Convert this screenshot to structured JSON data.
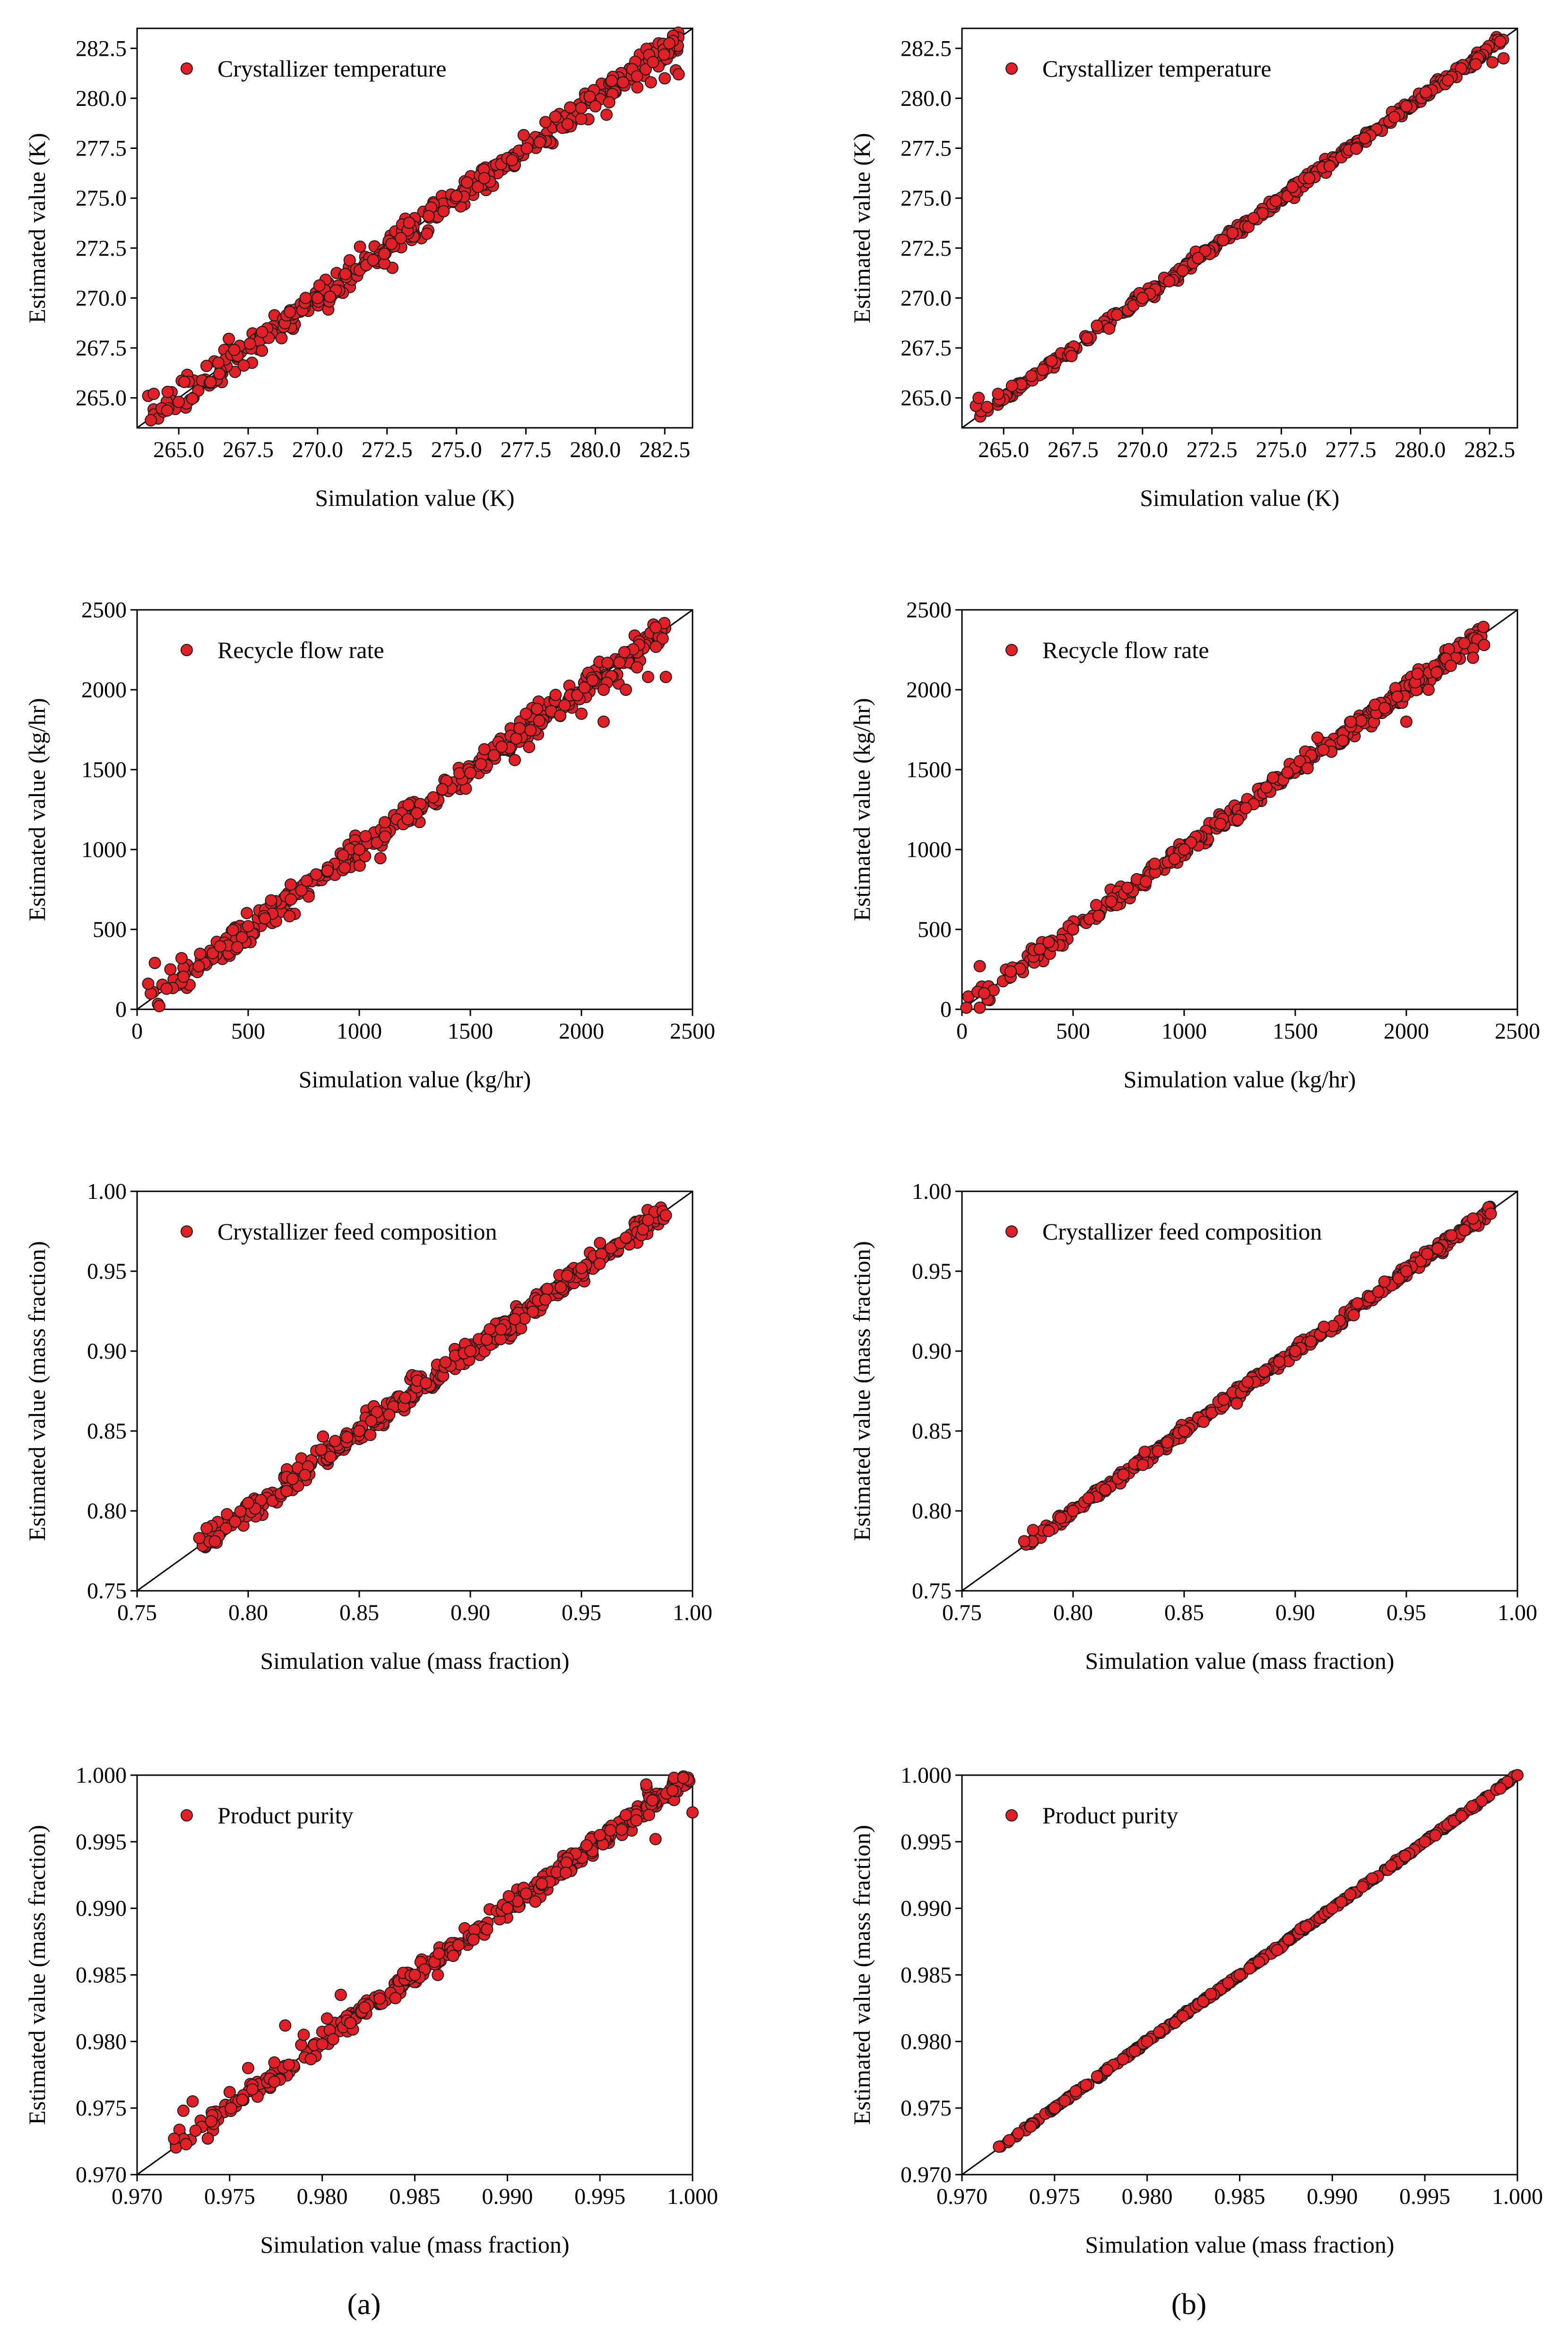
{
  "figure_labels": {
    "left": "(a)",
    "right": "(b)"
  },
  "colors": {
    "marker_fill": "#e21f26",
    "marker_edge": "#1a1a1a",
    "axis": "#000000"
  },
  "chart_data": [
    {
      "type": "scatter",
      "id": "a1",
      "legend": "Crystallizer temperature",
      "xlabel": "Simulation value (K)",
      "ylabel": "Estimated value (K)",
      "xlim": [
        263.5,
        283.5
      ],
      "ylim": [
        263.5,
        283.5
      ],
      "xticks": [
        "265.0",
        "267.5",
        "270.0",
        "272.5",
        "275.0",
        "277.5",
        "280.0",
        "282.5"
      ],
      "yticks": [
        "265.0",
        "267.5",
        "270.0",
        "272.5",
        "275.0",
        "277.5",
        "280.0",
        "282.5"
      ],
      "diagonal": true,
      "noise": 0.35,
      "points": [
        [
          263.9,
          265.1
        ],
        [
          264.1,
          265.2
        ],
        [
          264.6,
          265.3
        ],
        [
          265.0,
          264.8
        ],
        [
          265.2,
          265.8
        ],
        [
          266.0,
          266.6
        ],
        [
          267.0,
          267.4
        ],
        [
          268.0,
          268.3
        ],
        [
          269.0,
          269.3
        ],
        [
          270.0,
          270.0
        ],
        [
          271.0,
          271.2
        ],
        [
          272.0,
          271.9
        ],
        [
          273.0,
          273.0
        ],
        [
          274.0,
          274.1
        ],
        [
          275.0,
          275.1
        ],
        [
          276.0,
          276.0
        ],
        [
          277.0,
          276.9
        ],
        [
          278.0,
          277.8
        ],
        [
          279.0,
          278.7
        ],
        [
          280.0,
          279.6
        ],
        [
          280.5,
          279.8
        ],
        [
          281.0,
          280.8
        ],
        [
          281.5,
          281.1
        ],
        [
          282.0,
          280.8
        ],
        [
          282.5,
          281.0
        ],
        [
          282.9,
          281.4
        ],
        [
          283.0,
          281.2
        ]
      ]
    },
    {
      "type": "scatter",
      "id": "b1",
      "legend": "Crystallizer temperature",
      "xlabel": "Simulation value (K)",
      "ylabel": "Estimated value (K)",
      "xlim": [
        263.5,
        283.5
      ],
      "ylim": [
        263.5,
        283.5
      ],
      "xticks": [
        "265.0",
        "267.5",
        "270.0",
        "272.5",
        "275.0",
        "277.5",
        "280.0",
        "282.5"
      ],
      "yticks": [
        "265.0",
        "267.5",
        "270.0",
        "272.5",
        "275.0",
        "277.5",
        "280.0",
        "282.5"
      ],
      "diagonal": true,
      "noise": 0.15,
      "points": [
        [
          264.0,
          264.6
        ],
        [
          264.1,
          265.0
        ],
        [
          264.8,
          265.2
        ],
        [
          265.3,
          265.6
        ],
        [
          266.0,
          266.1
        ],
        [
          268.0,
          268.0
        ],
        [
          270.0,
          270.0
        ],
        [
          272.0,
          272.0
        ],
        [
          274.0,
          274.0
        ],
        [
          276.0,
          276.0
        ],
        [
          278.0,
          278.0
        ],
        [
          279.5,
          279.6
        ],
        [
          280.2,
          280.3
        ],
        [
          281.0,
          280.9
        ],
        [
          282.0,
          281.7
        ],
        [
          282.6,
          281.8
        ],
        [
          283.0,
          282.0
        ]
      ]
    },
    {
      "type": "scatter",
      "id": "a2",
      "legend": "Recycle flow rate",
      "xlabel": "Simulation value (kg/hr)",
      "ylabel": "Estimated value (kg/hr)",
      "xlim": [
        0,
        2500
      ],
      "ylim": [
        0,
        2500
      ],
      "xticks": [
        "0",
        "500",
        "1000",
        "1500",
        "2000",
        "2500"
      ],
      "yticks": [
        "0",
        "500",
        "1000",
        "1500",
        "2000",
        "2500"
      ],
      "diagonal": true,
      "noise": 45,
      "points": [
        [
          50,
          160
        ],
        [
          80,
          290
        ],
        [
          100,
          20
        ],
        [
          150,
          250
        ],
        [
          200,
          320
        ],
        [
          500,
          520
        ],
        [
          1000,
          1000
        ],
        [
          1500,
          1480
        ],
        [
          1700,
          1560
        ],
        [
          1750,
          1850
        ],
        [
          1800,
          1880
        ],
        [
          2000,
          1850
        ],
        [
          2050,
          2060
        ],
        [
          2100,
          1800
        ],
        [
          2100,
          2000
        ],
        [
          2200,
          2000
        ],
        [
          2250,
          2140
        ],
        [
          2300,
          2080
        ],
        [
          2380,
          2080
        ]
      ]
    },
    {
      "type": "scatter",
      "id": "b2",
      "legend": "Recycle flow rate",
      "xlabel": "Simulation value (kg/hr)",
      "ylabel": "Estimated value (kg/hr)",
      "xlim": [
        0,
        2500
      ],
      "ylim": [
        0,
        2500
      ],
      "xticks": [
        "0",
        "500",
        "1000",
        "1500",
        "2000",
        "2500"
      ],
      "yticks": [
        "0",
        "500",
        "1000",
        "1500",
        "2000",
        "2500"
      ],
      "diagonal": true,
      "noise": 30,
      "points": [
        [
          20,
          10
        ],
        [
          80,
          270
        ],
        [
          100,
          100
        ],
        [
          500,
          500
        ],
        [
          1000,
          1000
        ],
        [
          1400,
          1450
        ],
        [
          1600,
          1700
        ],
        [
          1750,
          1800
        ],
        [
          2000,
          1800
        ],
        [
          2050,
          2100
        ],
        [
          2100,
          2000
        ],
        [
          2200,
          2150
        ],
        [
          2300,
          2200
        ],
        [
          2350,
          2280
        ]
      ]
    },
    {
      "type": "scatter",
      "id": "a3",
      "legend": "Crystallizer feed composition",
      "xlabel": "Simulation value (mass fraction)",
      "ylabel": "Estimated value (mass fraction)",
      "xlim": [
        0.75,
        1.0
      ],
      "ylim": [
        0.75,
        1.0
      ],
      "xticks": [
        "0.75",
        "0.80",
        "0.85",
        "0.90",
        "0.95",
        "1.00"
      ],
      "yticks": [
        "0.75",
        "0.80",
        "0.85",
        "0.90",
        "0.95",
        "1.00"
      ],
      "diagonal": true,
      "noise": 0.004,
      "points": [
        [
          0.778,
          0.783
        ],
        [
          0.785,
          0.781
        ],
        [
          0.8,
          0.805
        ],
        [
          0.82,
          0.82
        ],
        [
          0.85,
          0.85
        ],
        [
          0.88,
          0.88
        ],
        [
          0.9,
          0.9
        ],
        [
          0.92,
          0.92
        ],
        [
          0.95,
          0.952
        ],
        [
          0.97,
          0.971
        ],
        [
          0.98,
          0.982
        ],
        [
          0.988,
          0.985
        ]
      ]
    },
    {
      "type": "scatter",
      "id": "b3",
      "legend": "Crystallizer feed composition",
      "xlabel": "Simulation value (mass fraction)",
      "ylabel": "Estimated value (mass fraction)",
      "xlim": [
        0.75,
        1.0
      ],
      "ylim": [
        0.75,
        1.0
      ],
      "xticks": [
        "0.75",
        "0.80",
        "0.85",
        "0.90",
        "0.95",
        "1.00"
      ],
      "yticks": [
        "0.75",
        "0.80",
        "0.85",
        "0.90",
        "0.95",
        "1.00"
      ],
      "diagonal": true,
      "noise": 0.0018,
      "points": [
        [
          0.778,
          0.781
        ],
        [
          0.782,
          0.788
        ],
        [
          0.8,
          0.8
        ],
        [
          0.85,
          0.85
        ],
        [
          0.9,
          0.9
        ],
        [
          0.95,
          0.95
        ],
        [
          0.98,
          0.983
        ],
        [
          0.988,
          0.986
        ]
      ]
    },
    {
      "type": "scatter",
      "id": "a4",
      "legend": "Product purity",
      "xlabel": "Simulation value (mass fraction)",
      "ylabel": "Estimated value (mass fraction)",
      "xlim": [
        0.97,
        1.0
      ],
      "ylim": [
        0.97,
        1.0
      ],
      "xticks": [
        "0.970",
        "0.975",
        "0.980",
        "0.985",
        "0.990",
        "0.995",
        "1.000"
      ],
      "yticks": [
        "0.970",
        "0.975",
        "0.980",
        "0.985",
        "0.990",
        "0.995",
        "1.000"
      ],
      "diagonal": true,
      "noise": 0.0004,
      "points": [
        [
          0.972,
          0.9727
        ],
        [
          0.9725,
          0.9748
        ],
        [
          0.973,
          0.9755
        ],
        [
          0.974,
          0.974
        ],
        [
          0.975,
          0.9762
        ],
        [
          0.976,
          0.978
        ],
        [
          0.978,
          0.9812
        ],
        [
          0.979,
          0.9805
        ],
        [
          0.98,
          0.9798
        ],
        [
          0.981,
          0.9835
        ],
        [
          0.985,
          0.985
        ],
        [
          0.99,
          0.99
        ],
        [
          0.995,
          0.9955
        ],
        [
          0.9975,
          0.9993
        ],
        [
          0.998,
          0.9952
        ],
        [
          0.999,
          0.9998
        ],
        [
          0.9995,
          0.9998
        ],
        [
          1.0,
          0.9972
        ]
      ]
    },
    {
      "type": "scatter",
      "id": "b4",
      "legend": "Product purity",
      "xlabel": "Simulation value (mass fraction)",
      "ylabel": "Estimated value (mass fraction)",
      "xlim": [
        0.97,
        1.0
      ],
      "ylim": [
        0.97,
        1.0
      ],
      "xticks": [
        "0.970",
        "0.975",
        "0.980",
        "0.985",
        "0.990",
        "0.995",
        "1.000"
      ],
      "yticks": [
        "0.970",
        "0.975",
        "0.980",
        "0.985",
        "0.990",
        "0.995",
        "1.000"
      ],
      "diagonal": true,
      "noise": 6e-05,
      "points": [
        [
          0.972,
          0.9721
        ],
        [
          0.975,
          0.975
        ],
        [
          0.98,
          0.98
        ],
        [
          0.985,
          0.985
        ],
        [
          0.99,
          0.99
        ],
        [
          0.995,
          0.995
        ],
        [
          1.0,
          1.0
        ]
      ]
    }
  ]
}
